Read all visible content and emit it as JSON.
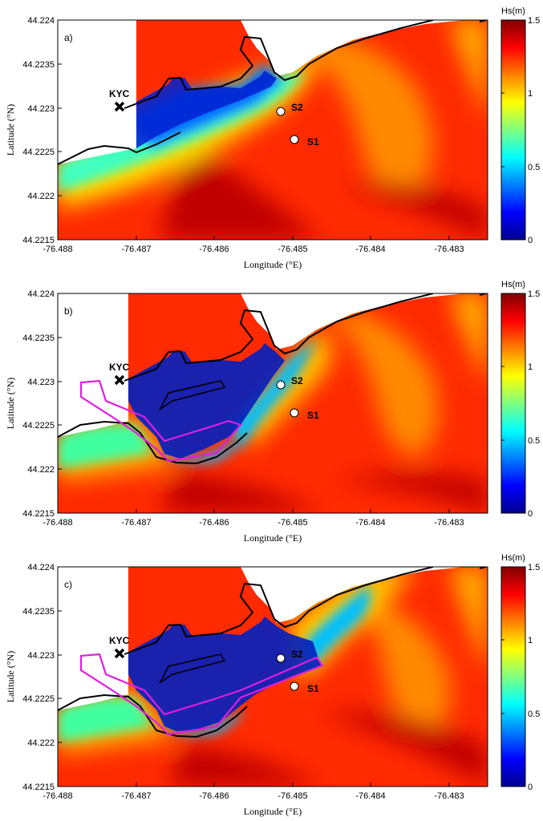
{
  "chart_data": [
    {
      "type": "heatmap",
      "panel_label": "a)",
      "xlabel": "Longitude (°E)",
      "ylabel": "Latitude (°N)",
      "xlim": [
        -76.488,
        -76.4825
      ],
      "ylim": [
        44.2215,
        44.224
      ],
      "x_ticks": [
        "-76.488",
        "-76.487",
        "-76.486",
        "-76.485",
        "-76.484",
        "-76.483"
      ],
      "y_ticks": [
        "44.2215",
        "44.222",
        "44.2225",
        "44.223",
        "44.2235",
        "44.224"
      ],
      "colorbar": {
        "label": "Hs(m)",
        "range": [
          0,
          1.5
        ],
        "ticks": [
          "0",
          "0.5",
          "1",
          "1.5"
        ]
      },
      "markers": [
        {
          "name": "KYC",
          "lon": -76.4872,
          "lat": 44.223,
          "symbol": "x"
        },
        {
          "name": "S2",
          "lon": -76.4851,
          "lat": 44.22295,
          "symbol": "circle"
        },
        {
          "name": "S1",
          "lon": -76.4849,
          "lat": 44.22263,
          "symbol": "circle"
        }
      ],
      "breakwater": "none"
    },
    {
      "type": "heatmap",
      "panel_label": "b)",
      "xlabel": "Longitude (°E)",
      "ylabel": "Latitude (°N)",
      "xlim": [
        -76.488,
        -76.4825
      ],
      "ylim": [
        44.2215,
        44.224
      ],
      "x_ticks": [
        "-76.488",
        "-76.487",
        "-76.486",
        "-76.485",
        "-76.484",
        "-76.483"
      ],
      "y_ticks": [
        "44.2215",
        "44.222",
        "44.2225",
        "44.223",
        "44.2235",
        "44.224"
      ],
      "colorbar": {
        "label": "Hs(m)",
        "range": [
          0,
          1.5
        ],
        "ticks": [
          "0",
          "0.5",
          "1",
          "1.5"
        ]
      },
      "markers": [
        {
          "name": "KYC",
          "lon": -76.4872,
          "lat": 44.223,
          "symbol": "x"
        },
        {
          "name": "S2",
          "lon": -76.4851,
          "lat": 44.22295,
          "symbol": "circle"
        },
        {
          "name": "S1",
          "lon": -76.4849,
          "lat": 44.22263,
          "symbol": "circle"
        }
      ],
      "breakwater": "short"
    },
    {
      "type": "heatmap",
      "panel_label": "c)",
      "xlabel": "Longitude (°E)",
      "ylabel": "Latitude (°N)",
      "xlim": [
        -76.488,
        -76.4825
      ],
      "ylim": [
        44.2215,
        44.224
      ],
      "x_ticks": [
        "-76.488",
        "-76.487",
        "-76.486",
        "-76.485",
        "-76.484",
        "-76.483"
      ],
      "y_ticks": [
        "44.2215",
        "44.222",
        "44.2225",
        "44.223",
        "44.2235",
        "44.224"
      ],
      "colorbar": {
        "label": "Hs(m)",
        "range": [
          0,
          1.5
        ],
        "ticks": [
          "0",
          "0.5",
          "1",
          "1.5"
        ]
      },
      "markers": [
        {
          "name": "KYC",
          "lon": -76.4872,
          "lat": 44.223,
          "symbol": "x"
        },
        {
          "name": "S2",
          "lon": -76.4851,
          "lat": 44.22295,
          "symbol": "circle"
        },
        {
          "name": "S1",
          "lon": -76.4849,
          "lat": 44.22263,
          "symbol": "circle"
        }
      ],
      "breakwater": "extended"
    }
  ],
  "colors": {
    "coastline": "#000000",
    "breakwater": "#e01ee0",
    "colormap": [
      "#00008f",
      "#0000ff",
      "#00ffff",
      "#ffff00",
      "#ff0000",
      "#800000"
    ]
  }
}
